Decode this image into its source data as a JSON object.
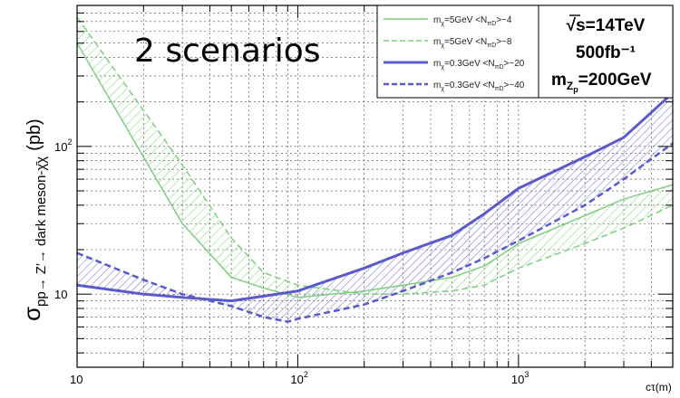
{
  "overlay_label": "2 scenarios",
  "info_box": {
    "line1": "√s=14TeV",
    "line2": "500fb⁻¹",
    "line3": "m",
    "line3_sub": "Z",
    "line3_subsub": "p",
    "line3_rest": "=200GeV"
  },
  "chart_data": {
    "type": "line",
    "title": "",
    "xlabel": "cτ(m)",
    "ylabel": "σ",
    "ylabel_sub": "pp→ Z′→ dark meson-χ̄χ",
    "ylabel_unit": "(pb)",
    "xscale": "log",
    "yscale": "log",
    "xlim": [
      10,
      5000
    ],
    "ylim": [
      3.2,
      900
    ],
    "grid": true,
    "legend_position": "top-right",
    "x_tick_labels": [
      {
        "value": 10,
        "base": "10",
        "exp": ""
      },
      {
        "value": 100,
        "base": "10",
        "exp": "2"
      },
      {
        "value": 1000,
        "base": "10",
        "exp": "3"
      }
    ],
    "y_tick_labels": [
      {
        "value": 10,
        "base": "10",
        "exp": ""
      },
      {
        "value": 100,
        "base": "10",
        "exp": "2"
      }
    ],
    "series": [
      {
        "name": "m",
        "legend_sub": "χ",
        "legend_mid": "=5GeV <N",
        "legend_nsub": "πD",
        "legend_tail": ">~4",
        "color": "#7fce7f",
        "dash": "solid",
        "width": 1.5,
        "x": [
          10,
          30,
          50,
          70,
          100,
          200,
          300,
          500,
          700,
          1000,
          2000,
          3000,
          5000
        ],
        "y": [
          500,
          30,
          13,
          11,
          9.5,
          10.5,
          11.5,
          13,
          15.5,
          22,
          34,
          44,
          55
        ]
      },
      {
        "name": "m",
        "legend_sub": "χ",
        "legend_mid": "=5GeV <N",
        "legend_nsub": "πD",
        "legend_tail": ">~8",
        "color": "#7fce7f",
        "dash": "dashed",
        "width": 1.5,
        "x": [
          10,
          30,
          50,
          70,
          100,
          200,
          300,
          500,
          700,
          1000,
          2000,
          3000,
          5000
        ],
        "y": [
          750,
          75,
          24,
          14,
          11.5,
          10,
          10,
          10.5,
          11.5,
          15,
          22,
          28,
          40
        ]
      },
      {
        "name": "m",
        "legend_sub": "χ",
        "legend_mid": "=0.3GeV <N",
        "legend_nsub": "πD",
        "legend_tail": ">~20",
        "color": "#5a5acc",
        "dash": "solid",
        "width": 3,
        "x": [
          10,
          20,
          30,
          50,
          70,
          100,
          200,
          300,
          500,
          700,
          1000,
          2000,
          3000,
          5000
        ],
        "y": [
          11.5,
          10,
          9.5,
          9,
          9.7,
          10.5,
          15,
          19,
          25,
          35,
          52,
          85,
          115,
          230
        ]
      },
      {
        "name": "m",
        "legend_sub": "χ",
        "legend_mid": "=0.3GeV <N",
        "legend_nsub": "πD",
        "legend_tail": ">~40",
        "color": "#5a5acc",
        "dash": "dashed",
        "width": 2.5,
        "x": [
          10,
          20,
          30,
          50,
          70,
          90,
          100,
          200,
          300,
          500,
          700,
          1000,
          2000,
          3000,
          5000
        ],
        "y": [
          19,
          12.5,
          10,
          8.3,
          7,
          6.5,
          6.8,
          8.5,
          10.5,
          14,
          17.5,
          23,
          40,
          60,
          105
        ]
      }
    ],
    "bands": [
      {
        "between": [
          0,
          1
        ],
        "color": "#7fce7f"
      },
      {
        "between": [
          2,
          3
        ],
        "color": "#5a5acc"
      }
    ]
  }
}
